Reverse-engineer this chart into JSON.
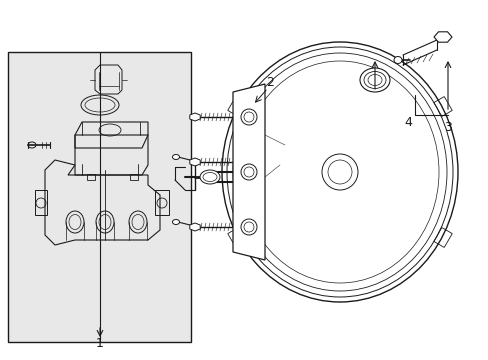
{
  "bg": "#ffffff",
  "lc": "#1a1a1a",
  "box_fill": "#e8e8e8",
  "fig_w": 4.89,
  "fig_h": 3.6,
  "dpi": 100,
  "xlim": [
    0,
    489
  ],
  "ylim": [
    0,
    360
  ]
}
